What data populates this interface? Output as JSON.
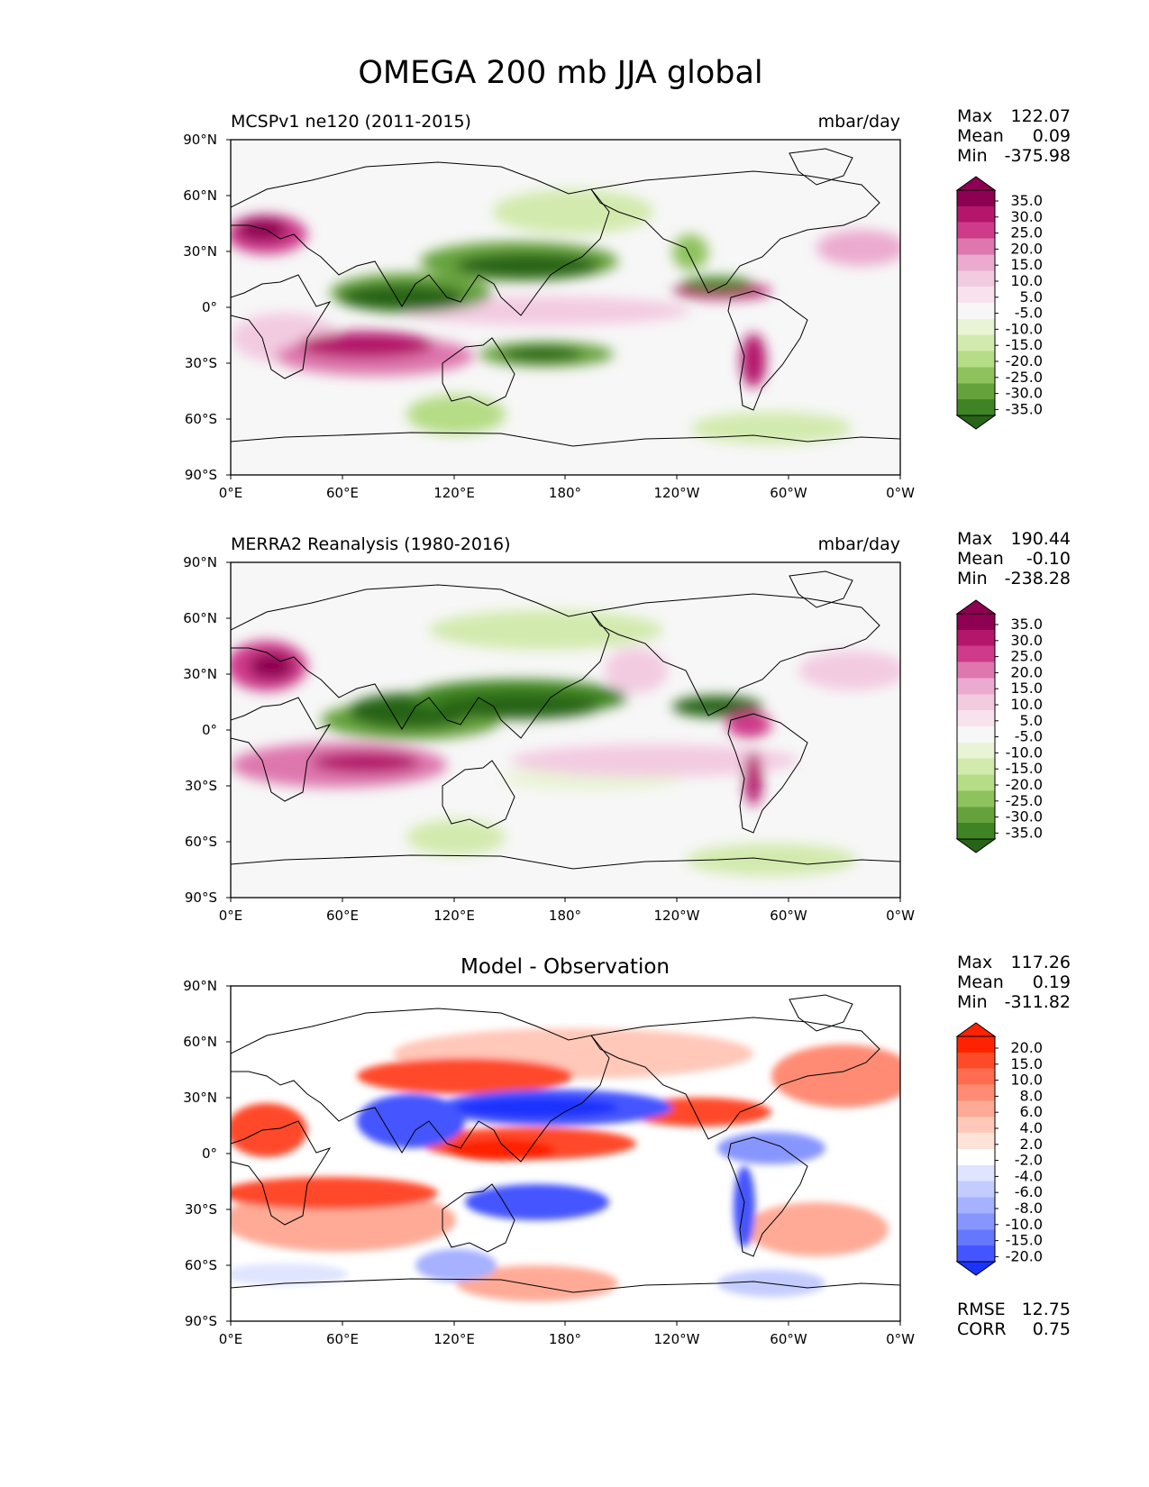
{
  "figure": {
    "title": "OMEGA 200 mb JJA global",
    "xticks": [
      "0°E",
      "60°E",
      "120°E",
      "180°",
      "120°W",
      "60°W",
      "0°W"
    ],
    "yticks": [
      "90°N",
      "60°N",
      "30°N",
      "0°",
      "30°S",
      "60°S",
      "90°S"
    ]
  },
  "chart_data": [
    {
      "type": "heatmap",
      "title_left": "MCSPv1 ne120 (2011-2015)",
      "title_right": "mbar/day",
      "variable": "OMEGA 200 mb JJA",
      "xlim": [
        0,
        360
      ],
      "ylim": [
        -90,
        90
      ],
      "stats": {
        "max_label": "Max",
        "max": "122.07",
        "mean_label": "Mean",
        "mean": "0.09",
        "min_label": "Min",
        "min": "-375.98"
      },
      "colorbar_ticks": [
        "35.0",
        "30.0",
        "25.0",
        "20.0",
        "15.0",
        "10.0",
        "5.0",
        "-5.0",
        "-10.0",
        "-15.0",
        "-20.0",
        "-25.0",
        "-30.0",
        "-35.0"
      ],
      "colormap": "diverging_pink_green"
    },
    {
      "type": "heatmap",
      "title_left": "MERRA2 Reanalysis (1980-2016)",
      "title_right": "mbar/day",
      "variable": "OMEGA 200 mb JJA",
      "xlim": [
        0,
        360
      ],
      "ylim": [
        -90,
        90
      ],
      "stats": {
        "max_label": "Max",
        "max": "190.44",
        "mean_label": "Mean",
        "mean": "-0.10",
        "min_label": "Min",
        "min": "-238.28"
      },
      "colorbar_ticks": [
        "35.0",
        "30.0",
        "25.0",
        "20.0",
        "15.0",
        "10.0",
        "5.0",
        "-5.0",
        "-10.0",
        "-15.0",
        "-20.0",
        "-25.0",
        "-30.0",
        "-35.0"
      ],
      "colormap": "diverging_pink_green"
    },
    {
      "type": "heatmap",
      "title_center": "Model - Observation",
      "variable": "OMEGA 200 mb JJA difference",
      "xlim": [
        0,
        360
      ],
      "ylim": [
        -90,
        90
      ],
      "stats": {
        "max_label": "Max",
        "max": "117.26",
        "mean_label": "Mean",
        "mean": "0.19",
        "min_label": "Min",
        "min": "-311.82"
      },
      "colorbar_ticks": [
        "20.0",
        "15.0",
        "10.0",
        "8.0",
        "6.0",
        "4.0",
        "2.0",
        "-2.0",
        "-4.0",
        "-6.0",
        "-8.0",
        "-10.0",
        "-15.0",
        "-20.0"
      ],
      "colormap": "diverging_red_blue",
      "metrics": {
        "rmse_label": "RMSE",
        "rmse": "12.75",
        "corr_label": "CORR",
        "corr": "0.75"
      }
    }
  ],
  "colors": {
    "pink_green": [
      "#8e0152",
      "#b4166b",
      "#cf3a8b",
      "#de77ae",
      "#ebaacf",
      "#f3cbe1",
      "#f8e2ee",
      "#f7f7f7",
      "#e9f4d6",
      "#d2eaad",
      "#b5dc86",
      "#8ec25d",
      "#66a23c",
      "#3f8424",
      "#276419"
    ],
    "red_blue": [
      "#ff2200",
      "#ff4a2a",
      "#ff6c4f",
      "#ff8b74",
      "#ffaa96",
      "#ffc8b9",
      "#ffe2d8",
      "#ffffff",
      "#dfe4ff",
      "#c4ccff",
      "#a6b1ff",
      "#8796ff",
      "#6677ff",
      "#4455ff",
      "#1a33ff"
    ]
  }
}
